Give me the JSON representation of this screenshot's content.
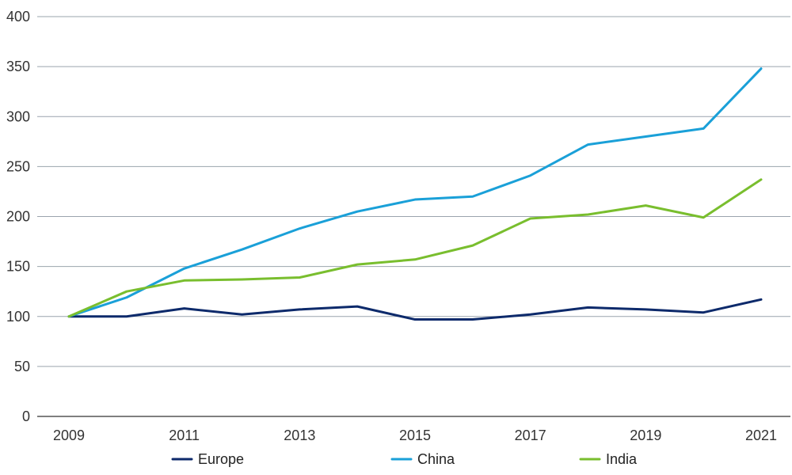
{
  "chart_data": {
    "type": "line",
    "title": "",
    "xlabel": "",
    "ylabel": "",
    "x": [
      2009,
      2010,
      2011,
      2012,
      2013,
      2014,
      2015,
      2016,
      2017,
      2018,
      2019,
      2020,
      2021
    ],
    "x_ticks": [
      "2009",
      "2011",
      "2013",
      "2015",
      "2017",
      "2019",
      "2021"
    ],
    "y_ticks": [
      "0",
      "50",
      "100",
      "150",
      "200",
      "250",
      "300",
      "350",
      "400"
    ],
    "ylim": [
      0,
      400
    ],
    "grid": true,
    "legend_position": "bottom",
    "series": [
      {
        "name": "Europe",
        "color": "#0d2a6b",
        "values": [
          100,
          100,
          108,
          102,
          107,
          110,
          97,
          97,
          102,
          109,
          107,
          104,
          117
        ]
      },
      {
        "name": "China",
        "color": "#1aa0d8",
        "values": [
          100,
          119,
          148,
          167,
          188,
          205,
          217,
          220,
          241,
          272,
          280,
          288,
          348
        ]
      },
      {
        "name": "India",
        "color": "#79be2e",
        "values": [
          100,
          125,
          136,
          137,
          139,
          152,
          157,
          171,
          198,
          202,
          211,
          199,
          237
        ]
      }
    ]
  }
}
